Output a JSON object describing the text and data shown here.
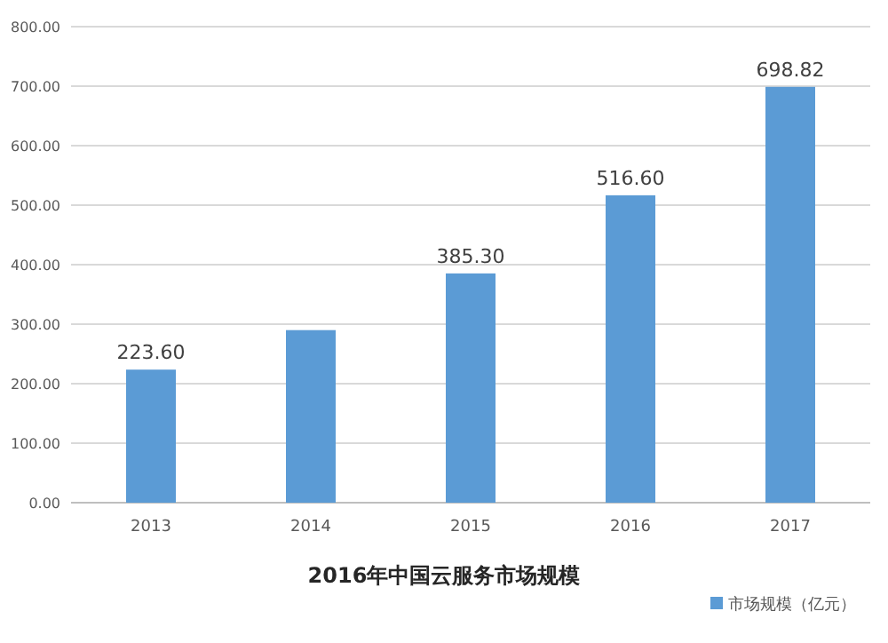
{
  "chart_data": {
    "type": "bar",
    "title": "2016年中国云服务市场规模",
    "categories": [
      "2013",
      "2014",
      "2015",
      "2016",
      "2017"
    ],
    "series": [
      {
        "name": "市场规模（亿元）",
        "color": "#5b9bd5",
        "values": [
          223.6,
          290,
          385.3,
          516.6,
          698.82
        ],
        "value_labels": [
          "223.60",
          null,
          "385.30",
          "516.60",
          "698.82"
        ]
      }
    ],
    "ylim": [
      0,
      800
    ],
    "yticks": [
      {
        "value": 0,
        "label": "0.00"
      },
      {
        "value": 100,
        "label": "100.00"
      },
      {
        "value": 200,
        "label": "200.00"
      },
      {
        "value": 300,
        "label": "300.00"
      },
      {
        "value": 400,
        "label": "400.00"
      },
      {
        "value": 500,
        "label": "500.00"
      },
      {
        "value": 600,
        "label": "600.00"
      },
      {
        "value": 700,
        "label": "700.00"
      },
      {
        "value": 800,
        "label": "800.00"
      }
    ],
    "grid": "y",
    "legend": "bottom right"
  }
}
